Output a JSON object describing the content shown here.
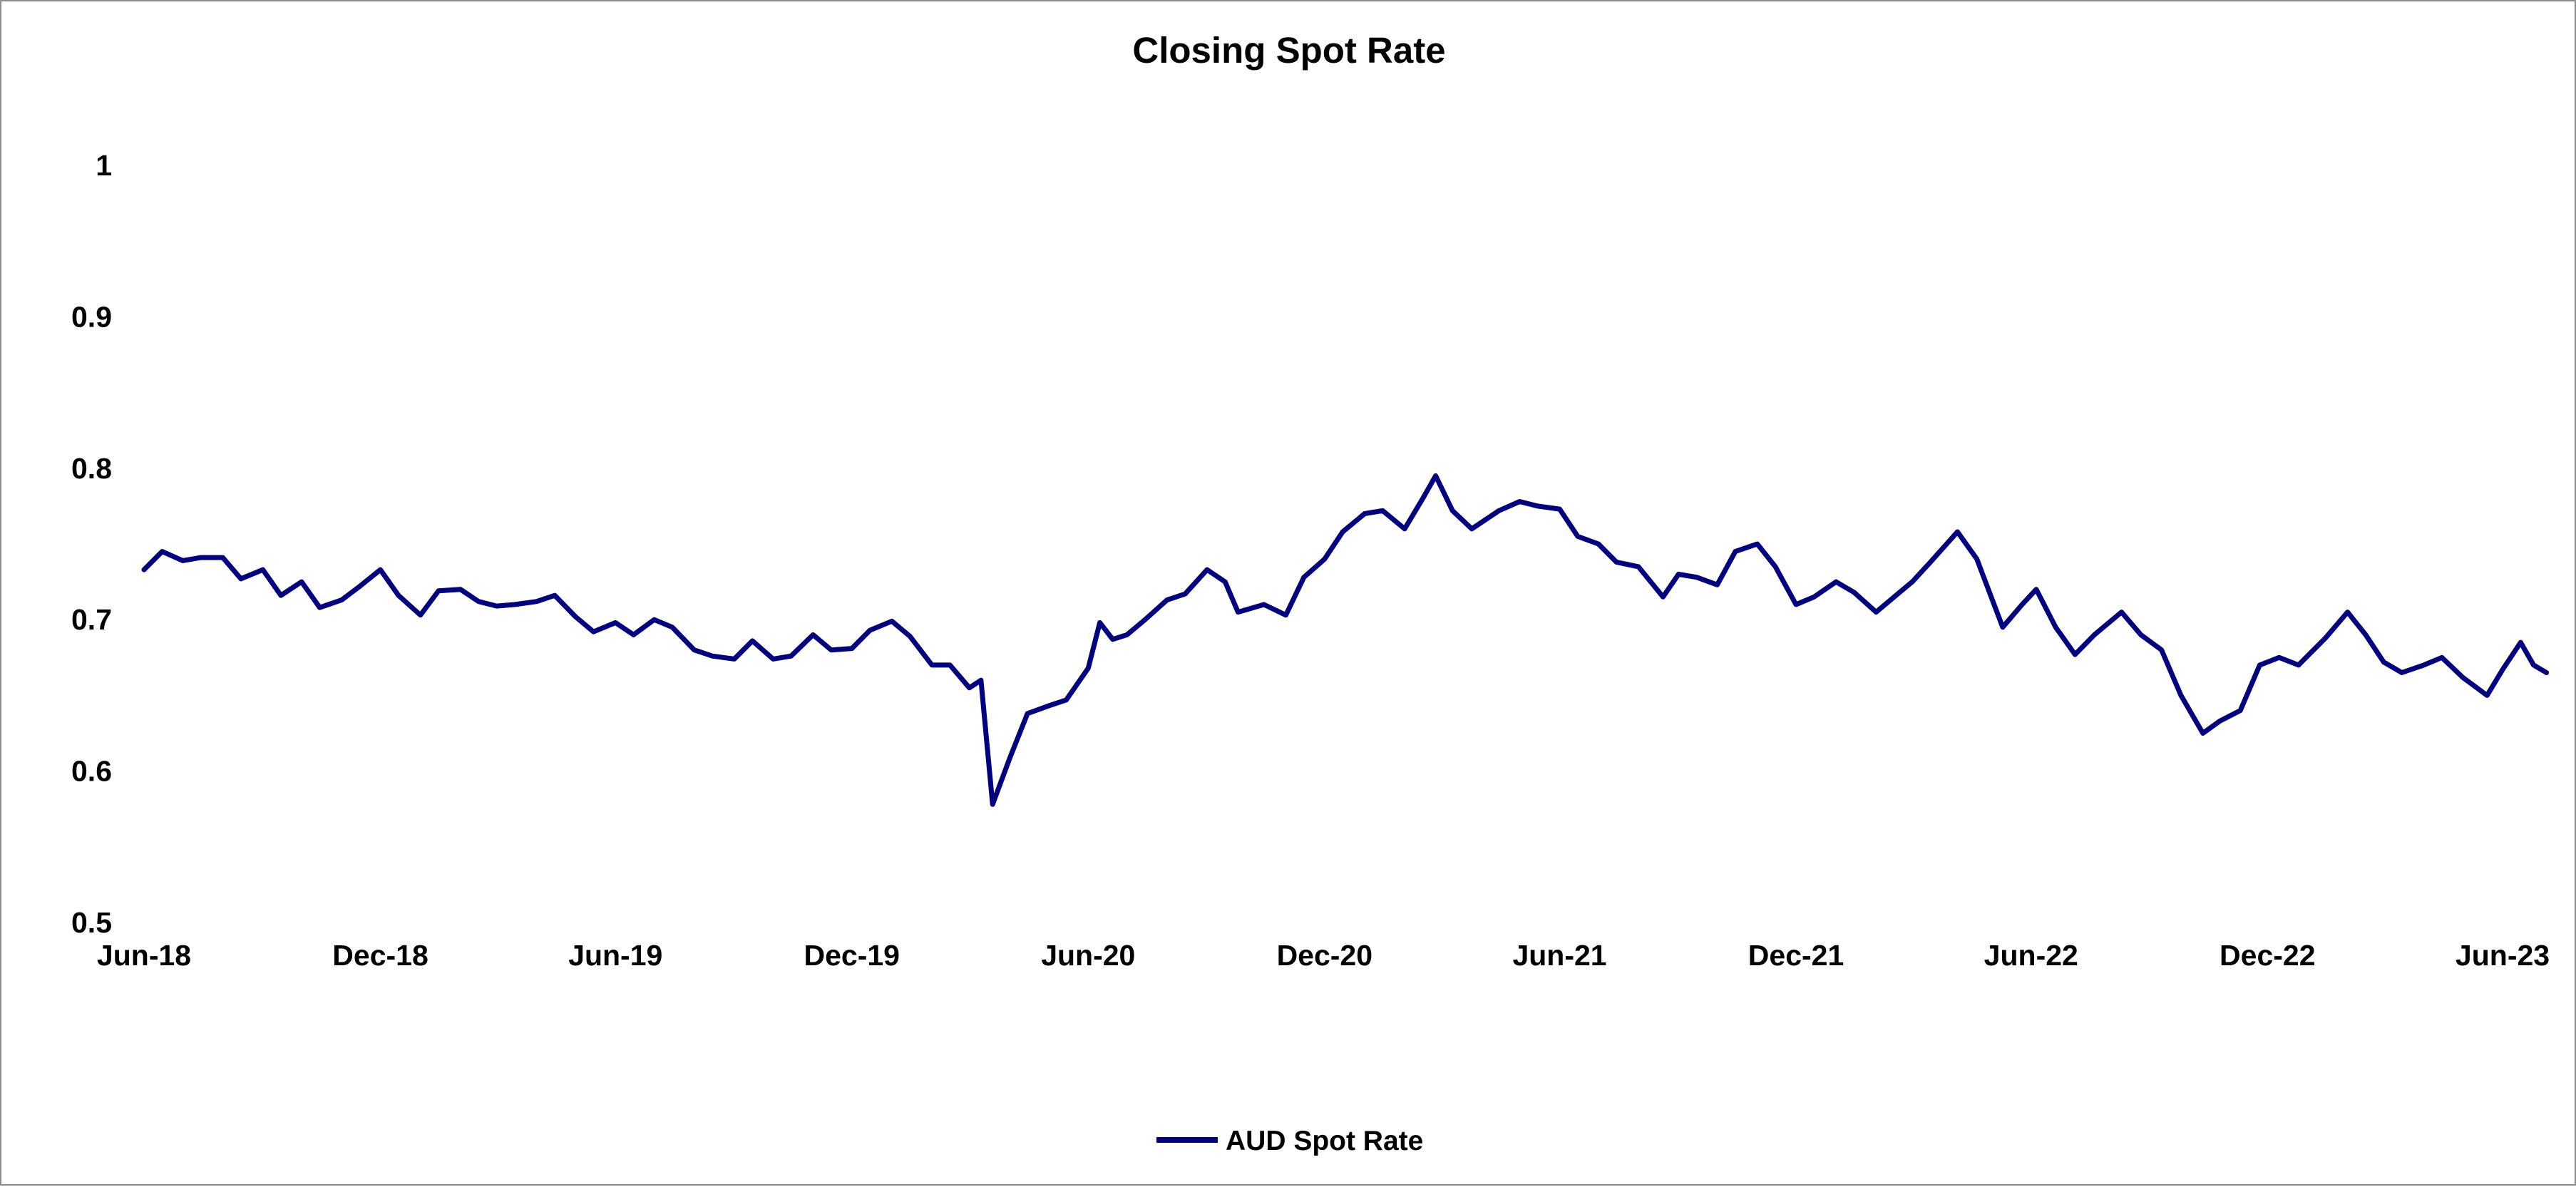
{
  "chart_data": {
    "type": "line",
    "title": "Closing Spot Rate",
    "xlabel": "",
    "ylabel": "",
    "xlim": [
      "2018-06-01",
      "2023-06-01"
    ],
    "ylim": [
      0.5,
      1
    ],
    "yticks": [
      0.5,
      0.6,
      0.7,
      0.8,
      0.9,
      1
    ],
    "ytick_labels": [
      "0.5",
      "0.6",
      "0.7",
      "0.8",
      "0.9",
      "1"
    ],
    "xtick_labels": [
      "Jun-18",
      "Dec-18",
      "Jun-19",
      "Dec-19",
      "Jun-20",
      "Dec-20",
      "Jun-21",
      "Dec-21",
      "Jun-22",
      "Dec-22",
      "Jun-23"
    ],
    "xtick_dates": [
      "2018-06-01",
      "2018-12-01",
      "2019-06-01",
      "2019-12-01",
      "2020-06-01",
      "2020-12-01",
      "2021-06-01",
      "2021-12-01",
      "2022-06-01",
      "2022-12-01",
      "2023-06-01"
    ],
    "grid": false,
    "legend_position": "bottom",
    "series": [
      {
        "name": "AUD Spot Rate",
        "color": "#000080",
        "points": [
          [
            "2018-06-01",
            0.733
          ],
          [
            "2018-06-15",
            0.745
          ],
          [
            "2018-07-01",
            0.739
          ],
          [
            "2018-07-15",
            0.741
          ],
          [
            "2018-08-01",
            0.741
          ],
          [
            "2018-08-15",
            0.727
          ],
          [
            "2018-09-01",
            0.733
          ],
          [
            "2018-09-15",
            0.716
          ],
          [
            "2018-10-01",
            0.725
          ],
          [
            "2018-10-15",
            0.708
          ],
          [
            "2018-11-01",
            0.713
          ],
          [
            "2018-11-15",
            0.722
          ],
          [
            "2018-12-01",
            0.733
          ],
          [
            "2018-12-15",
            0.716
          ],
          [
            "2019-01-01",
            0.703
          ],
          [
            "2019-01-15",
            0.719
          ],
          [
            "2019-02-01",
            0.72
          ],
          [
            "2019-02-15",
            0.712
          ],
          [
            "2019-03-01",
            0.709
          ],
          [
            "2019-03-15",
            0.71
          ],
          [
            "2019-04-01",
            0.712
          ],
          [
            "2019-04-15",
            0.716
          ],
          [
            "2019-05-01",
            0.702
          ],
          [
            "2019-05-15",
            0.692
          ],
          [
            "2019-06-01",
            0.698
          ],
          [
            "2019-06-15",
            0.69
          ],
          [
            "2019-07-01",
            0.7
          ],
          [
            "2019-07-15",
            0.695
          ],
          [
            "2019-08-01",
            0.68
          ],
          [
            "2019-08-15",
            0.676
          ],
          [
            "2019-09-01",
            0.674
          ],
          [
            "2019-09-15",
            0.686
          ],
          [
            "2019-10-01",
            0.674
          ],
          [
            "2019-10-15",
            0.676
          ],
          [
            "2019-11-01",
            0.69
          ],
          [
            "2019-11-15",
            0.68
          ],
          [
            "2019-12-01",
            0.681
          ],
          [
            "2019-12-15",
            0.693
          ],
          [
            "2020-01-01",
            0.699
          ],
          [
            "2020-01-15",
            0.689
          ],
          [
            "2020-02-01",
            0.67
          ],
          [
            "2020-02-15",
            0.67
          ],
          [
            "2020-03-01",
            0.655
          ],
          [
            "2020-03-10",
            0.66
          ],
          [
            "2020-03-19",
            0.578
          ],
          [
            "2020-04-01",
            0.608
          ],
          [
            "2020-04-15",
            0.638
          ],
          [
            "2020-05-01",
            0.643
          ],
          [
            "2020-05-15",
            0.647
          ],
          [
            "2020-06-01",
            0.668
          ],
          [
            "2020-06-10",
            0.698
          ],
          [
            "2020-06-20",
            0.687
          ],
          [
            "2020-07-01",
            0.69
          ],
          [
            "2020-07-15",
            0.7
          ],
          [
            "2020-08-01",
            0.713
          ],
          [
            "2020-08-15",
            0.717
          ],
          [
            "2020-09-01",
            0.733
          ],
          [
            "2020-09-15",
            0.725
          ],
          [
            "2020-09-25",
            0.705
          ],
          [
            "2020-10-15",
            0.71
          ],
          [
            "2020-11-01",
            0.703
          ],
          [
            "2020-11-15",
            0.728
          ],
          [
            "2020-12-01",
            0.74
          ],
          [
            "2020-12-15",
            0.758
          ],
          [
            "2021-01-01",
            0.77
          ],
          [
            "2021-01-15",
            0.772
          ],
          [
            "2021-02-01",
            0.76
          ],
          [
            "2021-02-15",
            0.78
          ],
          [
            "2021-02-25",
            0.795
          ],
          [
            "2021-03-10",
            0.772
          ],
          [
            "2021-03-25",
            0.76
          ],
          [
            "2021-04-15",
            0.772
          ],
          [
            "2021-05-01",
            0.778
          ],
          [
            "2021-05-15",
            0.775
          ],
          [
            "2021-06-01",
            0.773
          ],
          [
            "2021-06-15",
            0.755
          ],
          [
            "2021-07-01",
            0.75
          ],
          [
            "2021-07-15",
            0.738
          ],
          [
            "2021-08-01",
            0.735
          ],
          [
            "2021-08-20",
            0.715
          ],
          [
            "2021-09-01",
            0.73
          ],
          [
            "2021-09-15",
            0.728
          ],
          [
            "2021-10-01",
            0.723
          ],
          [
            "2021-10-15",
            0.745
          ],
          [
            "2021-11-01",
            0.75
          ],
          [
            "2021-11-15",
            0.735
          ],
          [
            "2021-12-01",
            0.71
          ],
          [
            "2021-12-15",
            0.715
          ],
          [
            "2022-01-01",
            0.725
          ],
          [
            "2022-01-15",
            0.718
          ],
          [
            "2022-02-01",
            0.705
          ],
          [
            "2022-02-15",
            0.715
          ],
          [
            "2022-03-01",
            0.725
          ],
          [
            "2022-03-15",
            0.738
          ],
          [
            "2022-04-05",
            0.758
          ],
          [
            "2022-04-20",
            0.74
          ],
          [
            "2022-05-10",
            0.695
          ],
          [
            "2022-05-25",
            0.71
          ],
          [
            "2022-06-05",
            0.72
          ],
          [
            "2022-06-20",
            0.695
          ],
          [
            "2022-07-05",
            0.677
          ],
          [
            "2022-07-20",
            0.69
          ],
          [
            "2022-08-10",
            0.705
          ],
          [
            "2022-08-25",
            0.69
          ],
          [
            "2022-09-10",
            0.68
          ],
          [
            "2022-09-25",
            0.65
          ],
          [
            "2022-10-12",
            0.625
          ],
          [
            "2022-10-25",
            0.633
          ],
          [
            "2022-11-10",
            0.64
          ],
          [
            "2022-11-25",
            0.67
          ],
          [
            "2022-12-10",
            0.675
          ],
          [
            "2022-12-25",
            0.67
          ],
          [
            "2023-01-15",
            0.688
          ],
          [
            "2023-02-01",
            0.705
          ],
          [
            "2023-02-15",
            0.69
          ],
          [
            "2023-03-01",
            0.672
          ],
          [
            "2023-03-15",
            0.665
          ],
          [
            "2023-04-01",
            0.67
          ],
          [
            "2023-04-15",
            0.675
          ],
          [
            "2023-05-01",
            0.662
          ],
          [
            "2023-05-20",
            0.65
          ],
          [
            "2023-06-01",
            0.667
          ],
          [
            "2023-06-15",
            0.685
          ],
          [
            "2023-06-25",
            0.67
          ],
          [
            "2023-07-05",
            0.665
          ]
        ]
      }
    ]
  }
}
